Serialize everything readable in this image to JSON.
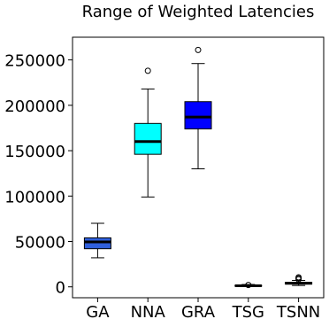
{
  "chart_data": {
    "type": "box",
    "title": "Range of Weighted Latencies",
    "xlabel": "",
    "ylabel": "",
    "ylim": [
      -12000,
      275000
    ],
    "yticks": [
      0,
      50000,
      100000,
      150000,
      200000,
      250000
    ],
    "ytick_labels": [
      "0",
      "50000",
      "100000",
      "150000",
      "200000",
      "250000"
    ],
    "categories": [
      "GA",
      "NNA",
      "GRA",
      "TSG",
      "TSNN"
    ],
    "grid": false,
    "series": [
      {
        "category": "GA",
        "color": "#2f5fdc",
        "median_color": "#000000",
        "whisker_low": 32000,
        "q1": 42000,
        "median": 49500,
        "q3": 54000,
        "whisker_high": 70000,
        "outliers": []
      },
      {
        "category": "NNA",
        "color": "#00ffff",
        "median_color": "#000000",
        "whisker_low": 99000,
        "q1": 146000,
        "median": 160000,
        "q3": 180000,
        "whisker_high": 218000,
        "outliers": [
          238000
        ]
      },
      {
        "category": "GRA",
        "color": "#0000ff",
        "median_color": "#000000",
        "whisker_low": 130000,
        "q1": 174000,
        "median": 187000,
        "q3": 204000,
        "whisker_high": 246000,
        "outliers": [
          261000
        ]
      },
      {
        "category": "TSG",
        "color": "#d9d9d9",
        "median_color": "#000000",
        "whisker_low": 400,
        "q1": 800,
        "median": 1200,
        "q3": 1700,
        "whisker_high": 2600,
        "outliers": [
          2000
        ]
      },
      {
        "category": "TSNN",
        "color": "#d9d9d9",
        "median_color": "#000000",
        "whisker_low": 1500,
        "q1": 3000,
        "median": 4000,
        "q3": 5000,
        "whisker_high": 7000,
        "outliers": [
          8200,
          9500,
          10500
        ]
      }
    ]
  }
}
